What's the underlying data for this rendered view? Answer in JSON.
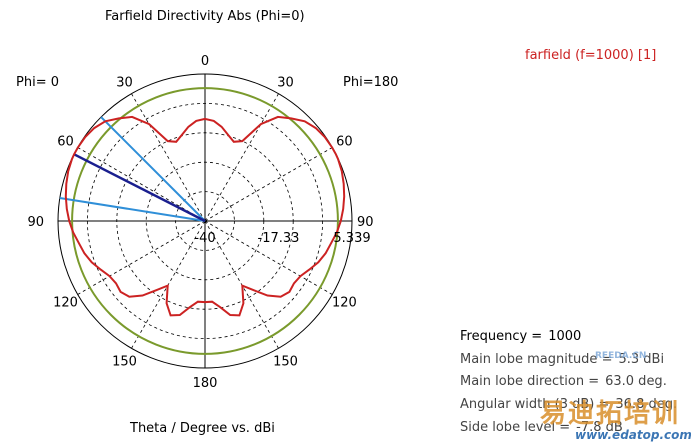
{
  "chart_data": {
    "type": "polar",
    "title": "Farfield Directivity Abs (Phi=0)",
    "xlabel": "Theta / Degree vs. dBi",
    "phi_left_label": "Phi=  0",
    "phi_right_label": "Phi=180",
    "angle_tick_labels": [
      "0",
      "30",
      "60",
      "90",
      "120",
      "150",
      "180",
      "150",
      "120",
      "90",
      "60",
      "30"
    ],
    "radial_tick_labels": [
      "-40",
      "-17.33",
      "5.339"
    ],
    "radial_range_dbi": [
      -40,
      5.339
    ],
    "series": [
      {
        "name": "farfield (f=1000) [1]",
        "color": "#cc2222",
        "theta_deg": [
          0,
          5,
          10,
          15,
          20,
          25,
          30,
          35,
          40,
          45,
          50,
          55,
          60,
          63,
          65,
          70,
          75,
          80,
          85,
          90,
          95,
          100,
          105,
          110,
          115,
          120,
          125,
          130,
          135,
          140,
          145,
          150,
          155,
          160,
          165,
          170,
          175,
          180
        ],
        "dbi": [
          -8.5,
          -9,
          -10.5,
          -12.5,
          -14,
          -12.8,
          -5.5,
          -0.8,
          1.3,
          3.5,
          4.6,
          5.1,
          5.3,
          5.3,
          5.25,
          4.9,
          4.3,
          3.6,
          2.8,
          1.9,
          0.8,
          -0.5,
          -1.5,
          -2.8,
          -4.5,
          -6,
          -6.5,
          -6,
          -7,
          -10,
          -14,
          -17,
          -12,
          -9,
          -10,
          -13,
          -15,
          -15
        ]
      }
    ],
    "reference_circle": {
      "color": "#7a9a2c",
      "dbi": 1.0
    },
    "main_lobe_angle_deg": 63.0,
    "beamwidth_lines_deg": [
      81,
      45
    ],
    "info": {
      "frequency_label": "Frequency =",
      "frequency_value": "1000",
      "magnitude_label": "Main lobe magnitude =",
      "magnitude_value": "5.3 dBi",
      "direction_label": "Main lobe direction =",
      "direction_value": "63.0 deg.",
      "width_label": "Angular width (3 dB) =",
      "width_value": "36.8 deg.",
      "side_label": "Side lobe level =",
      "side_value": "-7.8 dB"
    }
  },
  "watermark": {
    "chinese": "易迪拓培训",
    "url": "www.edatop.com",
    "small": "RFEDA.CN"
  }
}
